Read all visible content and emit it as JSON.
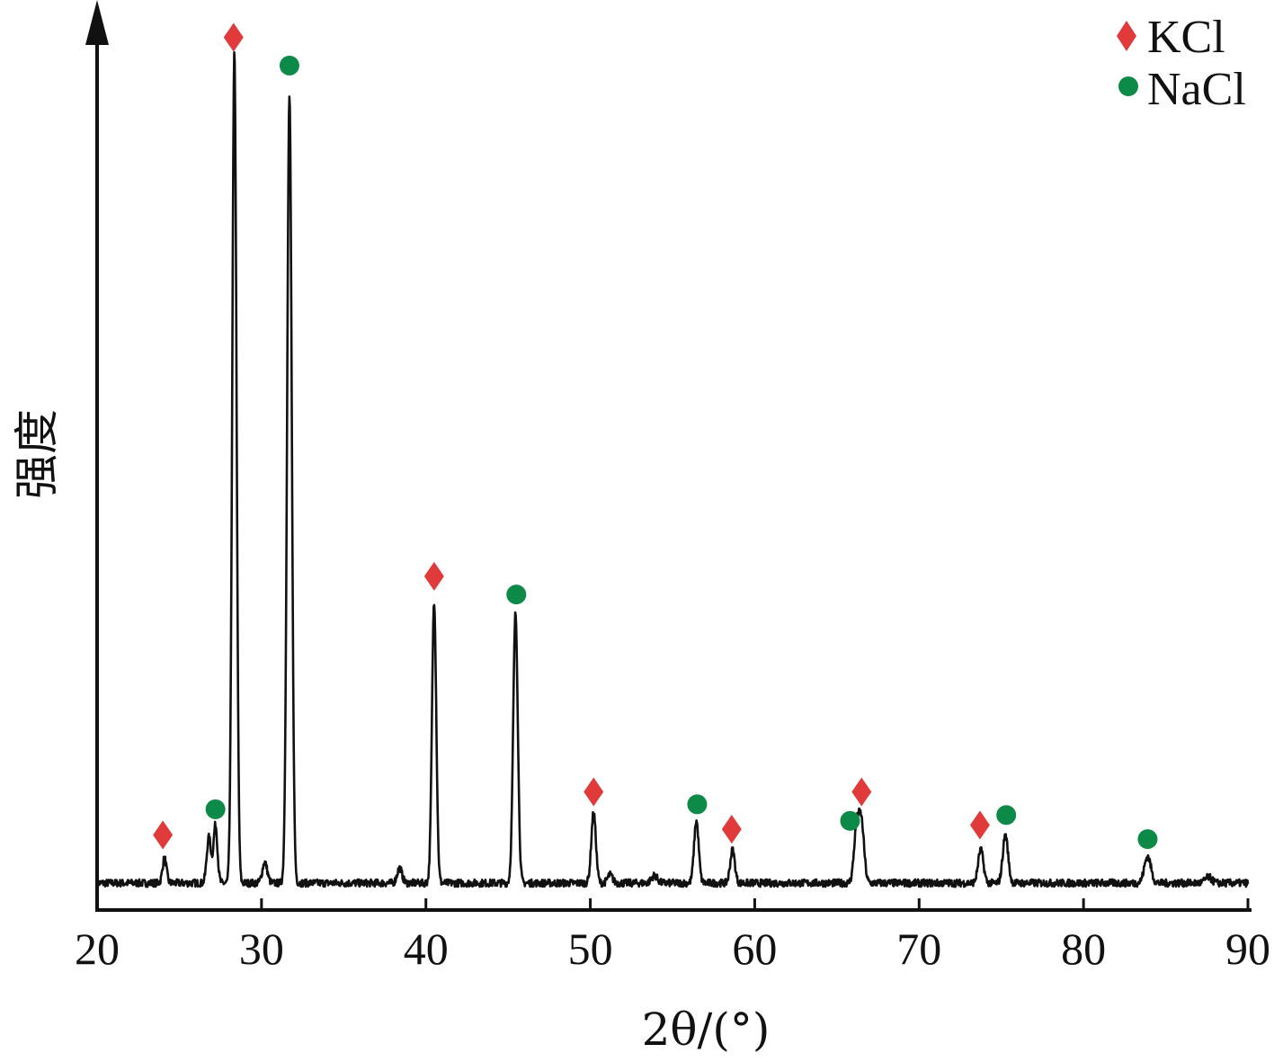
{
  "chart_data": {
    "type": "line",
    "title": "",
    "xlabel": "2θ/(°)",
    "ylabel": "强度",
    "xlim": [
      20,
      90
    ],
    "x_ticks": [
      20,
      30,
      40,
      50,
      60,
      70,
      80,
      90
    ],
    "x_tick_labels": [
      "20",
      "30",
      "40",
      "50",
      "60",
      "70",
      "80",
      "90"
    ],
    "y_ticks_shown": false,
    "grid": false,
    "legend_position": "top-right",
    "legend": [
      {
        "name": "KCl",
        "marker": "diamond",
        "color": "#e03a3a"
      },
      {
        "name": "NaCl",
        "marker": "circle",
        "color": "#0e8a48"
      }
    ],
    "baseline": 0,
    "noise_seed": 7,
    "peaks": [
      {
        "x": 24.1,
        "h": 3.0,
        "w": 0.12
      },
      {
        "x": 26.8,
        "h": 5.5,
        "w": 0.13
      },
      {
        "x": 27.2,
        "h": 7.0,
        "w": 0.12
      },
      {
        "x": 28.35,
        "h": 100.0,
        "w": 0.13
      },
      {
        "x": 30.2,
        "h": 2.5,
        "w": 0.15
      },
      {
        "x": 31.7,
        "h": 95.0,
        "w": 0.14
      },
      {
        "x": 38.4,
        "h": 1.8,
        "w": 0.15
      },
      {
        "x": 40.5,
        "h": 34.0,
        "w": 0.13
      },
      {
        "x": 45.45,
        "h": 32.5,
        "w": 0.14
      },
      {
        "x": 50.2,
        "h": 8.5,
        "w": 0.14
      },
      {
        "x": 51.2,
        "h": 1.0,
        "w": 0.15
      },
      {
        "x": 53.9,
        "h": 0.9,
        "w": 0.18
      },
      {
        "x": 56.45,
        "h": 7.5,
        "w": 0.14
      },
      {
        "x": 58.65,
        "h": 4.0,
        "w": 0.14
      },
      {
        "x": 66.2,
        "h": 6.5,
        "w": 0.16
      },
      {
        "x": 66.5,
        "h": 6.8,
        "w": 0.16
      },
      {
        "x": 73.75,
        "h": 4.0,
        "w": 0.16
      },
      {
        "x": 75.25,
        "h": 5.8,
        "w": 0.16
      },
      {
        "x": 83.9,
        "h": 3.2,
        "w": 0.2
      },
      {
        "x": 87.6,
        "h": 0.7,
        "w": 0.2
      }
    ],
    "markers": [
      {
        "phase": "KCl",
        "x": 24.0,
        "y": 5.8
      },
      {
        "phase": "NaCl",
        "x": 27.2,
        "y": 8.9
      },
      {
        "phase": "KCl",
        "x": 28.3,
        "y": 102.0
      },
      {
        "phase": "NaCl",
        "x": 31.7,
        "y": 98.6
      },
      {
        "phase": "KCl",
        "x": 40.5,
        "y": 37.0
      },
      {
        "phase": "NaCl",
        "x": 45.5,
        "y": 34.8
      },
      {
        "phase": "KCl",
        "x": 50.2,
        "y": 11.0
      },
      {
        "phase": "NaCl",
        "x": 56.5,
        "y": 9.5
      },
      {
        "phase": "KCl",
        "x": 58.6,
        "y": 6.5
      },
      {
        "phase": "NaCl",
        "x": 65.8,
        "y": 7.5
      },
      {
        "phase": "KCl",
        "x": 66.5,
        "y": 11.0
      },
      {
        "phase": "KCl",
        "x": 73.7,
        "y": 7.0
      },
      {
        "phase": "NaCl",
        "x": 75.3,
        "y": 8.2
      },
      {
        "phase": "NaCl",
        "x": 83.9,
        "y": 5.3
      }
    ]
  },
  "colors": {
    "line": "#111111",
    "axis": "#111111",
    "kcl": "#e03a3a",
    "nacl": "#0e8a48"
  }
}
